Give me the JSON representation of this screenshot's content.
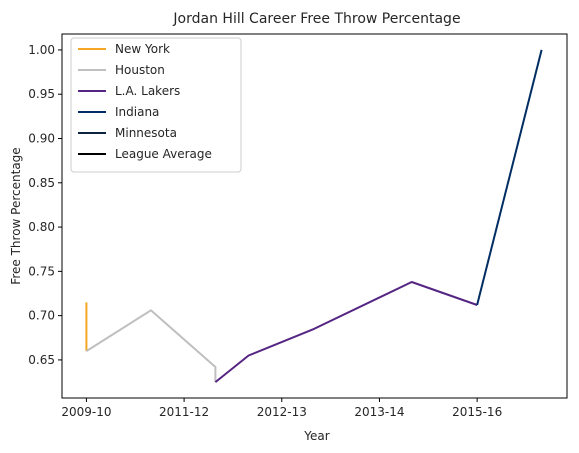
{
  "chart_data": {
    "type": "line",
    "title": "Jordan Hill  Career Free Throw Percentage",
    "xlabel": "Year",
    "ylabel": "Free Throw Percentage",
    "x_tick_labels": [
      "2009-10",
      "2011-12",
      "2012-13",
      "2013-14",
      "2015-16"
    ],
    "x_tick_positions": [
      0,
      1,
      2,
      3,
      4
    ],
    "xlim": [
      -0.25,
      4.92
    ],
    "ylim": [
      0.607,
      1.018
    ],
    "y_ticks": [
      0.65,
      0.7,
      0.75,
      0.8,
      0.85,
      0.9,
      0.95,
      1.0
    ],
    "y_tick_labels": [
      "0.65",
      "0.70",
      "0.75",
      "0.80",
      "0.85",
      "0.90",
      "0.95",
      "1.00"
    ],
    "grid": false,
    "legend_placement": "upper-left",
    "series": [
      {
        "name": "New York",
        "color": "#F5A623",
        "points": [
          [
            0,
            0.715
          ],
          [
            0,
            0.66
          ]
        ]
      },
      {
        "name": "Houston",
        "color": "#BFBFBF",
        "points": [
          [
            0,
            0.66
          ],
          [
            0.66,
            0.706
          ],
          [
            1.32,
            0.642
          ],
          [
            1.32,
            0.625
          ]
        ]
      },
      {
        "name": "L.A. Lakers",
        "color": "#552583",
        "points": [
          [
            1.32,
            0.625
          ],
          [
            1.66,
            0.655
          ],
          [
            2.33,
            0.685
          ],
          [
            3.33,
            0.738
          ],
          [
            4.0,
            0.712
          ]
        ]
      },
      {
        "name": "Indiana",
        "color": "#002D62",
        "points": [
          [
            4.0,
            0.712
          ],
          [
            4.66,
            1.0
          ]
        ]
      },
      {
        "name": "Minnesota",
        "color": "#0C2340",
        "points": [
          [
            4.66,
            1.0
          ]
        ]
      },
      {
        "name": "League Average",
        "color": "#000000",
        "points": []
      }
    ]
  }
}
